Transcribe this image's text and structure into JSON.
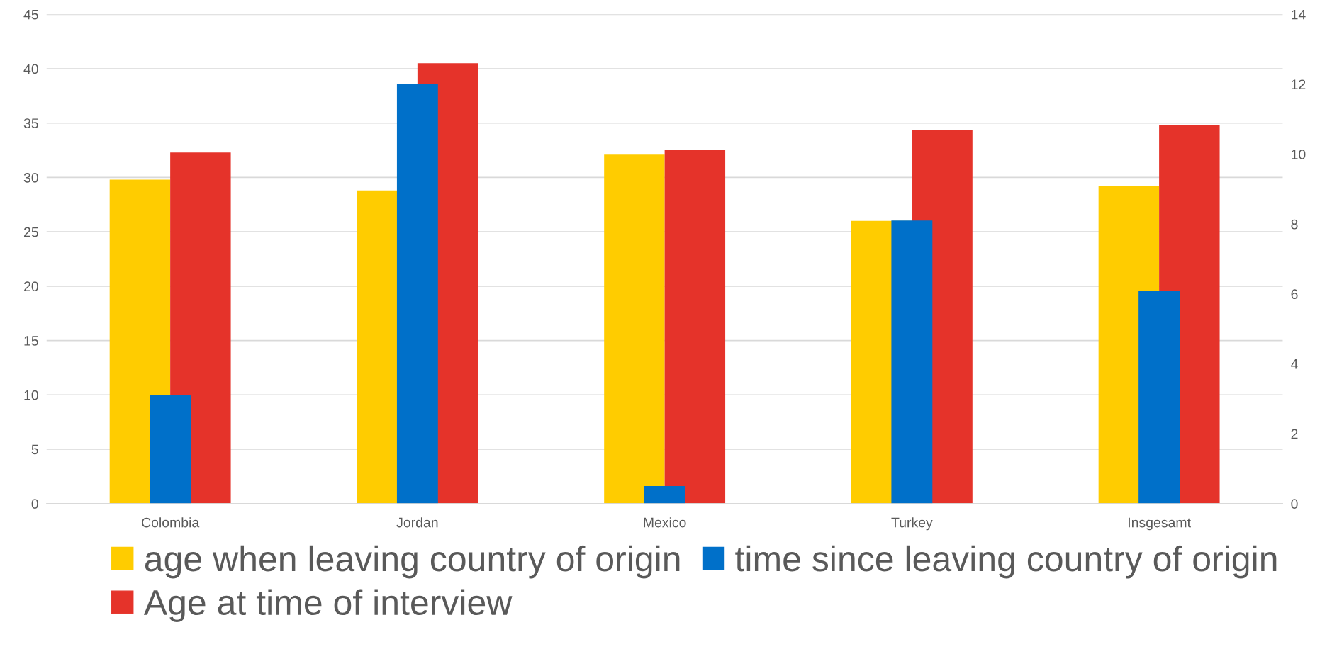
{
  "chart_data": {
    "type": "bar",
    "categories": [
      "Colombia",
      "Jordan",
      "Mexico",
      "Turkey",
      "Insgesamt"
    ],
    "series": [
      {
        "name": "age when leaving country of origin",
        "color": "#ffcc00",
        "values": [
          29.8,
          28.8,
          32.1,
          26.0,
          29.2
        ]
      },
      {
        "name": "Age at time of interview",
        "color": "#e5332a",
        "values": [
          32.3,
          40.5,
          32.5,
          34.4,
          34.8
        ]
      },
      {
        "name": "time since leaving country of origin",
        "color": "#0070c9",
        "values": [
          3.1,
          12.0,
          0.5,
          8.1,
          6.1
        ],
        "axis": "y2"
      }
    ],
    "ylim": [
      0,
      45
    ],
    "yticks": [
      0,
      5,
      10,
      15,
      20,
      25,
      30,
      35,
      40,
      45
    ],
    "y2lim": [
      0,
      14
    ],
    "y2ticks": [
      0,
      2,
      4,
      6,
      8,
      10,
      12,
      14
    ],
    "grid": "y",
    "legend": "bottom"
  }
}
